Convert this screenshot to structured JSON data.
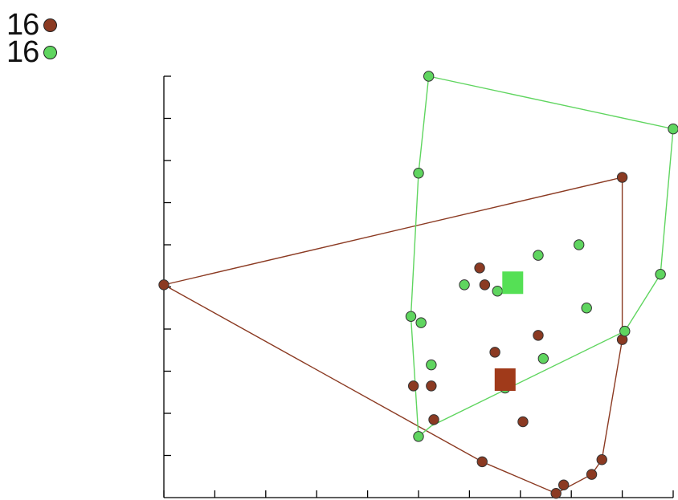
{
  "chart_data": {
    "type": "scatter",
    "title": "",
    "xlabel": "",
    "ylabel": "",
    "xlim": [
      0,
      100
    ],
    "ylim": [
      0,
      100
    ],
    "x_ticks": [
      0,
      10,
      20,
      30,
      40,
      50,
      60,
      70,
      80,
      90,
      100
    ],
    "y_ticks": [
      10,
      20,
      30,
      40,
      50,
      60,
      70,
      80,
      90,
      100
    ],
    "grid": false,
    "legend_position": "top-left",
    "series": [
      {
        "label": "16",
        "color": "#8b3a22",
        "centroid": [
          67,
          28
        ],
        "points": [
          [
            0,
            50.5
          ],
          [
            90,
            76
          ],
          [
            90,
            37.5
          ],
          [
            86,
            9
          ],
          [
            84,
            5.5
          ],
          [
            77,
            1
          ],
          [
            78.5,
            3
          ],
          [
            62.5,
            8.5
          ],
          [
            73.5,
            38.5
          ],
          [
            65,
            34.5
          ],
          [
            70.5,
            18
          ],
          [
            49,
            26.5
          ],
          [
            52.5,
            26.5
          ],
          [
            53,
            18.5
          ],
          [
            63,
            50.5
          ],
          [
            62,
            54.5
          ]
        ],
        "hull": [
          [
            0,
            50.5
          ],
          [
            90,
            76
          ],
          [
            90,
            37.5
          ],
          [
            86,
            9
          ],
          [
            84,
            5.5
          ],
          [
            77,
            1
          ],
          [
            62.5,
            8.5
          ]
        ]
      },
      {
        "label": "16",
        "color": "#5fd55f",
        "centroid": [
          68.5,
          51
        ],
        "points": [
          [
            52,
            100
          ],
          [
            100,
            87.5
          ],
          [
            50,
            77
          ],
          [
            97.5,
            53
          ],
          [
            90.5,
            39.5
          ],
          [
            50,
            14.5
          ],
          [
            48.5,
            43
          ],
          [
            50.5,
            41.5
          ],
          [
            52.5,
            31.5
          ],
          [
            67,
            26
          ],
          [
            59,
            50.5
          ],
          [
            65.5,
            49
          ],
          [
            73.5,
            57.5
          ],
          [
            74.5,
            33
          ],
          [
            81.5,
            60
          ],
          [
            83,
            45
          ]
        ],
        "hull": [
          [
            52,
            100
          ],
          [
            100,
            87.5
          ],
          [
            97.5,
            53
          ],
          [
            90.5,
            39.5
          ],
          [
            52.5,
            17
          ],
          [
            50,
            14.5
          ],
          [
            48.5,
            43
          ],
          [
            50,
            77
          ]
        ]
      }
    ]
  }
}
